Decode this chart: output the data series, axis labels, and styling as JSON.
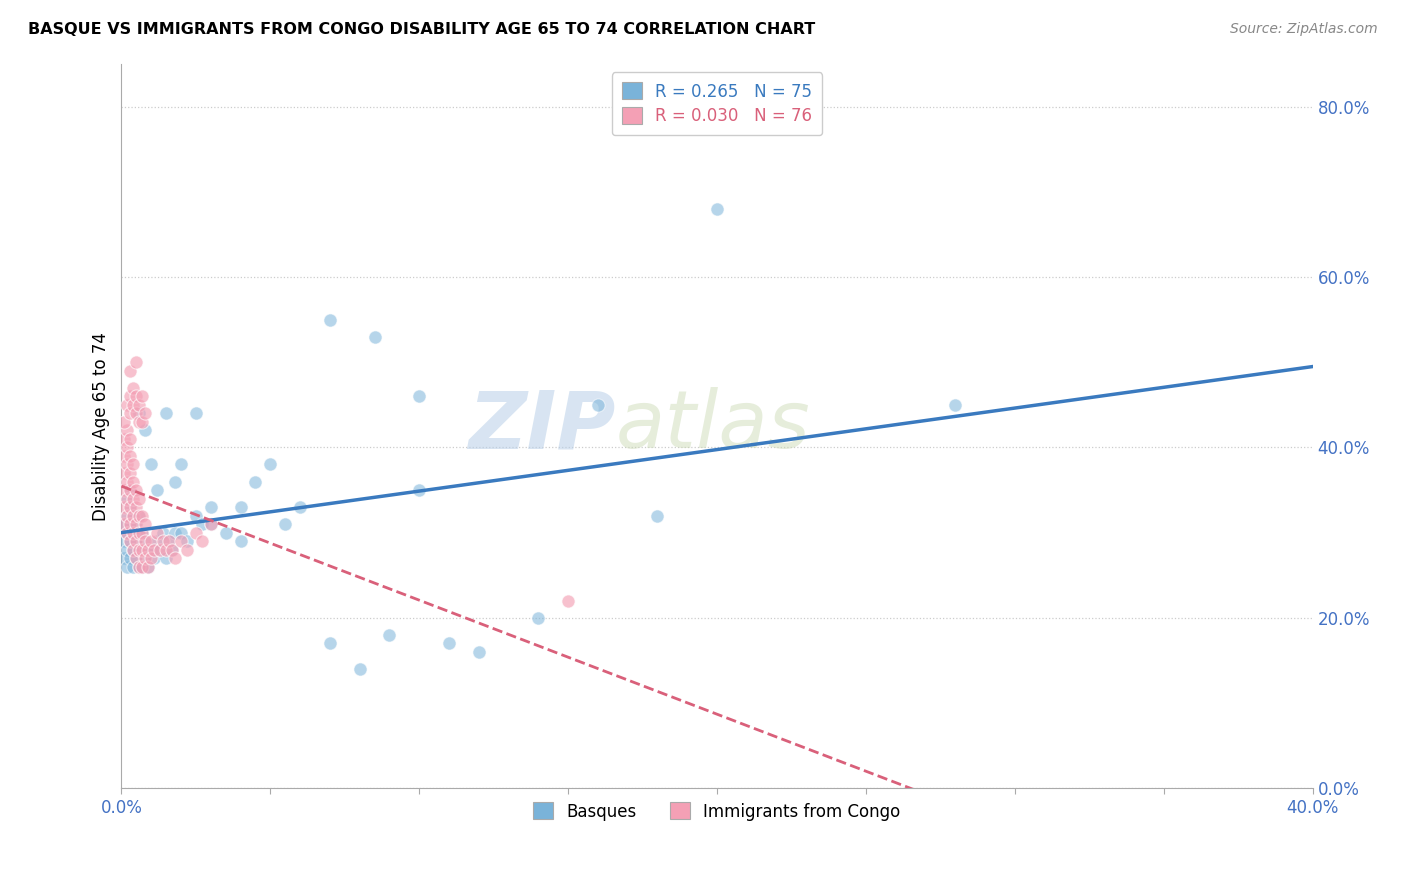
{
  "title": "BASQUE VS IMMIGRANTS FROM CONGO DISABILITY AGE 65 TO 74 CORRELATION CHART",
  "source": "Source: ZipAtlas.com",
  "ylabel": "Disability Age 65 to 74",
  "xlim": [
    0.0,
    0.4
  ],
  "ylim": [
    0.0,
    0.85
  ],
  "yticks": [
    0.0,
    0.2,
    0.4,
    0.6,
    0.8
  ],
  "ytick_labels": [
    "0.0%",
    "20.0%",
    "40.0%",
    "60.0%",
    "80.0%"
  ],
  "xticks": [
    0.0,
    0.05,
    0.1,
    0.15,
    0.2,
    0.25,
    0.3,
    0.35,
    0.4
  ],
  "xtick_labels": [
    "0.0%",
    "",
    "",
    "",
    "",
    "",
    "",
    "",
    "40.0%"
  ],
  "legend_r1": "R = 0.265",
  "legend_n1": "N = 75",
  "legend_r2": "R = 0.030",
  "legend_n2": "N = 76",
  "color_blue": "#7ab3d9",
  "color_pink": "#f4a0b5",
  "color_blue_line": "#3a7abf",
  "color_pink_line": "#d9607a",
  "watermark_zip": "ZIP",
  "watermark_atlas": "atlas",
  "legend_label1": "Basques",
  "legend_label2": "Immigrants from Congo",
  "basques_x": [
    0.001,
    0.001,
    0.001,
    0.002,
    0.002,
    0.002,
    0.002,
    0.002,
    0.003,
    0.003,
    0.003,
    0.003,
    0.003,
    0.004,
    0.004,
    0.004,
    0.004,
    0.005,
    0.005,
    0.005,
    0.006,
    0.006,
    0.006,
    0.006,
    0.007,
    0.007,
    0.007,
    0.008,
    0.008,
    0.009,
    0.009,
    0.01,
    0.011,
    0.012,
    0.013,
    0.014,
    0.015,
    0.016,
    0.017,
    0.018,
    0.02,
    0.022,
    0.025,
    0.027,
    0.03,
    0.035,
    0.04,
    0.045,
    0.05,
    0.055,
    0.06,
    0.07,
    0.08,
    0.09,
    0.1,
    0.11,
    0.12,
    0.14,
    0.16,
    0.18,
    0.006,
    0.008,
    0.01,
    0.012,
    0.015,
    0.018,
    0.02,
    0.025,
    0.03,
    0.04,
    0.07,
    0.085,
    0.1,
    0.2,
    0.28
  ],
  "basques_y": [
    0.27,
    0.29,
    0.31,
    0.26,
    0.28,
    0.3,
    0.32,
    0.34,
    0.27,
    0.29,
    0.31,
    0.33,
    0.35,
    0.26,
    0.28,
    0.3,
    0.32,
    0.27,
    0.29,
    0.31,
    0.26,
    0.28,
    0.3,
    0.32,
    0.26,
    0.28,
    0.3,
    0.27,
    0.29,
    0.26,
    0.28,
    0.28,
    0.27,
    0.29,
    0.28,
    0.3,
    0.27,
    0.29,
    0.28,
    0.3,
    0.3,
    0.29,
    0.32,
    0.31,
    0.33,
    0.3,
    0.33,
    0.36,
    0.38,
    0.31,
    0.33,
    0.17,
    0.14,
    0.18,
    0.46,
    0.17,
    0.16,
    0.2,
    0.45,
    0.32,
    0.44,
    0.42,
    0.38,
    0.35,
    0.44,
    0.36,
    0.38,
    0.44,
    0.31,
    0.29,
    0.55,
    0.53,
    0.35,
    0.68,
    0.45
  ],
  "congo_x": [
    0.001,
    0.001,
    0.001,
    0.001,
    0.001,
    0.001,
    0.002,
    0.002,
    0.002,
    0.002,
    0.002,
    0.002,
    0.002,
    0.003,
    0.003,
    0.003,
    0.003,
    0.003,
    0.003,
    0.003,
    0.004,
    0.004,
    0.004,
    0.004,
    0.004,
    0.004,
    0.005,
    0.005,
    0.005,
    0.005,
    0.005,
    0.006,
    0.006,
    0.006,
    0.006,
    0.006,
    0.007,
    0.007,
    0.007,
    0.007,
    0.008,
    0.008,
    0.008,
    0.009,
    0.009,
    0.01,
    0.01,
    0.011,
    0.012,
    0.013,
    0.014,
    0.015,
    0.016,
    0.017,
    0.018,
    0.02,
    0.022,
    0.025,
    0.027,
    0.03,
    0.001,
    0.002,
    0.003,
    0.003,
    0.004,
    0.004,
    0.005,
    0.005,
    0.006,
    0.006,
    0.007,
    0.007,
    0.008,
    0.003,
    0.005,
    0.15
  ],
  "congo_y": [
    0.31,
    0.33,
    0.35,
    0.37,
    0.39,
    0.41,
    0.3,
    0.32,
    0.34,
    0.36,
    0.38,
    0.4,
    0.42,
    0.29,
    0.31,
    0.33,
    0.35,
    0.37,
    0.39,
    0.41,
    0.28,
    0.3,
    0.32,
    0.34,
    0.36,
    0.38,
    0.27,
    0.29,
    0.31,
    0.33,
    0.35,
    0.26,
    0.28,
    0.3,
    0.32,
    0.34,
    0.26,
    0.28,
    0.3,
    0.32,
    0.27,
    0.29,
    0.31,
    0.26,
    0.28,
    0.27,
    0.29,
    0.28,
    0.3,
    0.28,
    0.29,
    0.28,
    0.29,
    0.28,
    0.27,
    0.29,
    0.28,
    0.3,
    0.29,
    0.31,
    0.43,
    0.45,
    0.44,
    0.46,
    0.45,
    0.47,
    0.44,
    0.46,
    0.43,
    0.45,
    0.43,
    0.46,
    0.44,
    0.49,
    0.5,
    0.22
  ]
}
